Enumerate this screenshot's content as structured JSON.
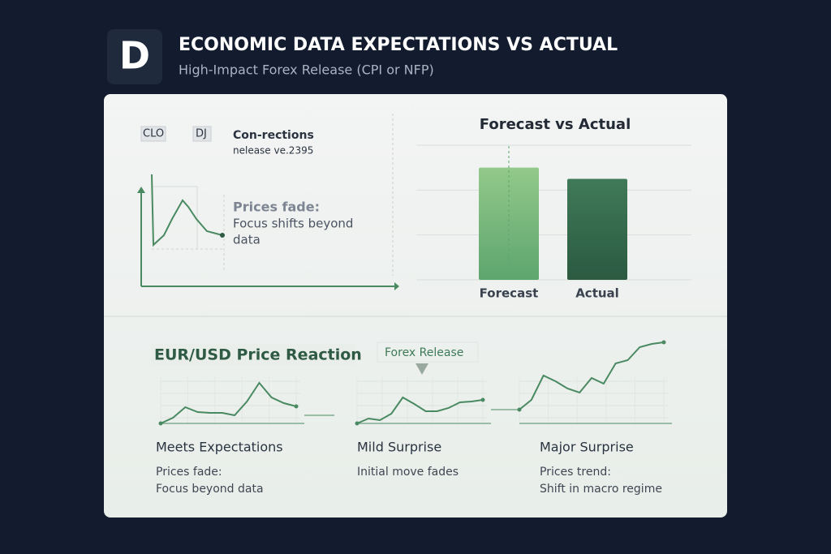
{
  "header": {
    "logo_letter": "D",
    "title": "ECONOMIC DATA EXPECTATIONS VS ACTUAL",
    "subtitle": "High-Impact Forex Release (CPI or NFP)"
  },
  "release_panel": {
    "tags": [
      "CLO",
      "DJ"
    ],
    "heading": "Con-rections",
    "subheading": "nelease ve.2395",
    "note_title": "Prices fade:",
    "note_lines": [
      "Focus shifts beyond",
      "data"
    ],
    "curve": {
      "x": [
        0,
        0.2,
        1.5,
        2.5,
        3.8,
        4.5,
        5.5,
        6.8,
        8.7
      ],
      "values": [
        13.8,
        5.1,
        6.3,
        8.3,
        10.6,
        9.8,
        8.3,
        6.8,
        6.3
      ],
      "color": "#4a8a62"
    }
  },
  "forecast_chart": {
    "title": "Forecast vs Actual",
    "categories": [
      "Forecast",
      "Actual"
    ],
    "values": [
      2.5,
      2.25
    ],
    "ylim": [
      0,
      3
    ],
    "grid_values": [
      0,
      1,
      2,
      3
    ],
    "colors": [
      [
        "#93c98a",
        "#5da56e"
      ],
      [
        "#3f7a58",
        "#2b5a41"
      ]
    ]
  },
  "reaction": {
    "title": "EUR/USD Price Reaction",
    "release_label": "Forex Release",
    "ylim": [
      0,
      11
    ],
    "color": "#4a8a62",
    "scenarios": [
      {
        "title": "Meets Expectations",
        "lines": [
          "Prices fade:",
          "Focus beyond data"
        ],
        "values": [
          0.3,
          1.0,
          2.3,
          1.7,
          1.6,
          1.6,
          1.3,
          3.0,
          5.3,
          3.5,
          2.8,
          2.4
        ]
      },
      {
        "title": "Mild Surprise",
        "lines": [
          "Initial move fades"
        ],
        "values": [
          0.3,
          0.9,
          0.7,
          1.5,
          3.5,
          2.7,
          1.8,
          1.8,
          2.2,
          2.9,
          3.0,
          3.2
        ]
      },
      {
        "title": "Major Surprise",
        "lines": [
          "Prices trend:",
          "Shift in macro regime"
        ],
        "values": [
          2.0,
          3.2,
          6.2,
          5.5,
          4.6,
          4.1,
          5.9,
          5.2,
          7.7,
          8.1,
          9.7,
          10.1,
          10.3
        ]
      }
    ]
  }
}
